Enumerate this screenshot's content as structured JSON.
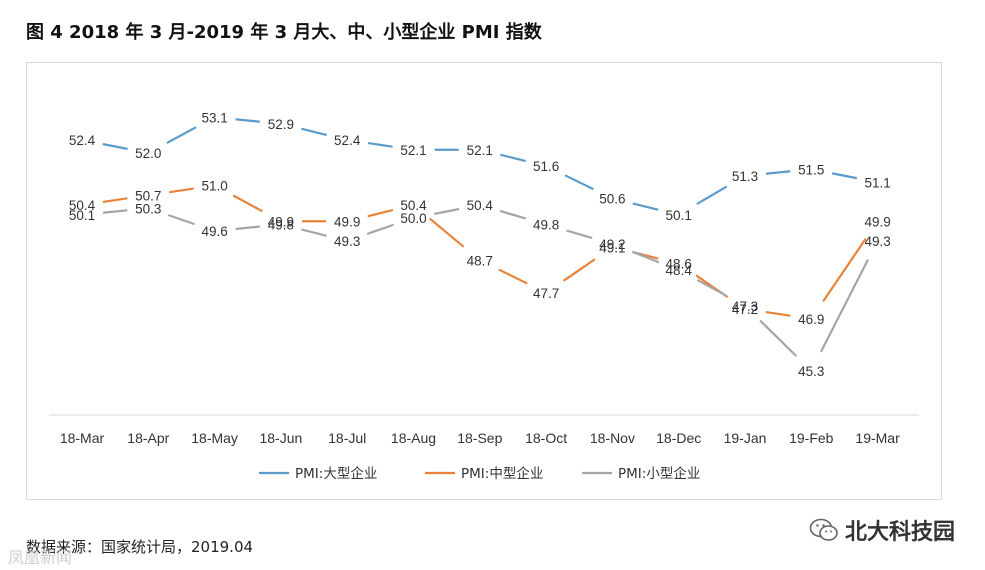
{
  "figure": {
    "title": "图 4   2018 年 3 月-2019 年 3 月大、中、小型企业 PMI 指数",
    "source": "数据来源：国家统计局，2019.04",
    "brand": "北大科技园",
    "watermark": "凤凰新闻"
  },
  "chart_data": {
    "type": "line",
    "title": "",
    "xlabel": "",
    "ylabel": "",
    "ylim": [
      44,
      54
    ],
    "grid": false,
    "legend_position": "bottom",
    "categories": [
      "18-Mar",
      "18-Apr",
      "18-May",
      "18-Jun",
      "18-Jul",
      "18-Aug",
      "18-Sep",
      "18-Oct",
      "18-Nov",
      "18-Dec",
      "19-Jan",
      "19-Feb",
      "19-Mar"
    ],
    "series": [
      {
        "name": "PMI:大型企业",
        "color": "#5b9bc9",
        "values": [
          52.4,
          52.0,
          53.1,
          52.9,
          52.4,
          52.1,
          52.1,
          51.6,
          50.6,
          50.1,
          51.3,
          51.5,
          51.1
        ]
      },
      {
        "name": "PMI:中型企业",
        "color": "#e8823a",
        "values": [
          50.4,
          50.7,
          51.0,
          49.9,
          49.9,
          50.4,
          48.7,
          47.7,
          49.1,
          48.6,
          47.2,
          46.9,
          49.9
        ]
      },
      {
        "name": "PMI:小型企业",
        "color": "#a5a5a5",
        "values": [
          50.1,
          50.3,
          49.6,
          49.8,
          49.3,
          50.0,
          50.4,
          49.8,
          49.2,
          48.4,
          47.3,
          45.3,
          49.3
        ]
      }
    ]
  }
}
